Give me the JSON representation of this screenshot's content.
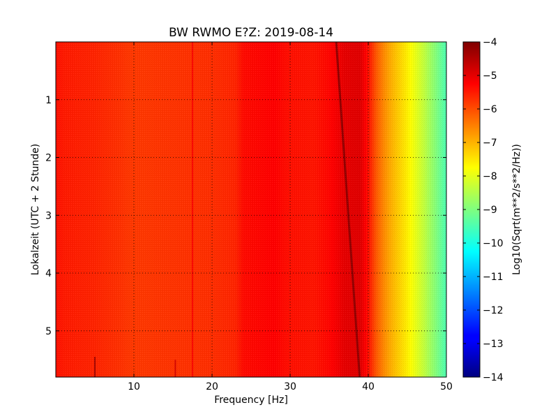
{
  "chart_data": {
    "type": "heatmap",
    "title": "BW RWMO E?Z: 2019-08-14",
    "xlabel": "Frequency [Hz]",
    "ylabel": "Lokalzeit (UTC + 2 Stunde)",
    "xlim": [
      0,
      50
    ],
    "ylim": [
      0,
      5.8
    ],
    "y_inverted": true,
    "x_ticks": [
      10,
      20,
      30,
      40,
      50
    ],
    "y_ticks": [
      1,
      2,
      3,
      4,
      5
    ],
    "grid": true,
    "colormap": "jet",
    "colorbar": {
      "label": "Log10(Sqrt(m**2/s**2/Hz))",
      "range": [
        -14,
        -4
      ],
      "ticks": [
        -4,
        -5,
        -6,
        -7,
        -8,
        -9,
        -10,
        -11,
        -12,
        -13,
        -14
      ]
    },
    "frequency_profile": {
      "frequency_hz": [
        0,
        1,
        5,
        10,
        15,
        20,
        23,
        24,
        26,
        28,
        30,
        33,
        35,
        37,
        39,
        40,
        41,
        42,
        43,
        44,
        45,
        46,
        47,
        48,
        49,
        50
      ],
      "value": [
        -5.4,
        -5.5,
        -5.6,
        -5.8,
        -5.75,
        -5.7,
        -5.6,
        -5.35,
        -5.3,
        -5.25,
        -5.4,
        -5.45,
        -5.3,
        -5.0,
        -4.95,
        -5.4,
        -6.1,
        -6.6,
        -7.0,
        -7.3,
        -7.6,
        -7.95,
        -8.3,
        -8.7,
        -9.1,
        -9.5
      ]
    },
    "features": [
      {
        "type": "drifting-line",
        "from": {
          "frequency_hz": 35.9,
          "time": 0
        },
        "to": {
          "frequency_hz": 38.9,
          "time": 5.8
        },
        "value": -4.2
      },
      {
        "type": "vertical-line",
        "frequency_hz": 5.0,
        "time_range": [
          5.45,
          5.8
        ],
        "value": -4.2
      },
      {
        "type": "vertical-line",
        "frequency_hz": 15.3,
        "time_range": [
          5.5,
          5.8
        ],
        "value": -4.8
      },
      {
        "type": "vertical-line",
        "frequency_hz": 17.5,
        "time_range": [
          0,
          5.8
        ],
        "value": -5.2
      }
    ]
  }
}
